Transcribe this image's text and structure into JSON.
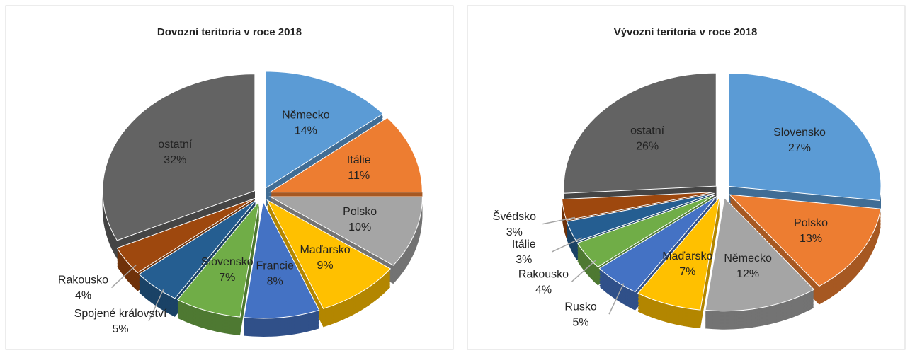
{
  "chart_data": [
    {
      "type": "pie",
      "title": "Dovozní teritoria v roce 2018",
      "categories": [
        "Německo",
        "Itálie",
        "Polsko",
        "Maďarsko",
        "Francie",
        "Slovensko",
        "Spojené království",
        "Rakousko",
        "ostatní"
      ],
      "values": [
        14,
        11,
        10,
        9,
        8,
        7,
        5,
        4,
        32
      ],
      "value_labels": [
        "14%",
        "11%",
        "10%",
        "9%",
        "8%",
        "7%",
        "5%",
        "4%",
        "32%"
      ],
      "colors": [
        "#5b9bd5",
        "#ed7d31",
        "#a5a5a5",
        "#ffc000",
        "#4472c4",
        "#70ad47",
        "#255e91",
        "#9e480e",
        "#636363"
      ]
    },
    {
      "type": "pie",
      "title": "Vývozní teritoria v roce 2018",
      "categories": [
        "Slovensko",
        "Polsko",
        "Německo",
        "Maďarsko",
        "Rusko",
        "Rakousko",
        "Itálie",
        "Švédsko",
        "ostatní"
      ],
      "values": [
        27,
        13,
        12,
        7,
        5,
        4,
        3,
        3,
        26
      ],
      "value_labels": [
        "27%",
        "13%",
        "12%",
        "7%",
        "5%",
        "4%",
        "3%",
        "3%",
        "26%"
      ],
      "colors": [
        "#5b9bd5",
        "#ed7d31",
        "#a5a5a5",
        "#ffc000",
        "#4472c4",
        "#70ad47",
        "#255e91",
        "#9e480e",
        "#636363"
      ]
    }
  ]
}
